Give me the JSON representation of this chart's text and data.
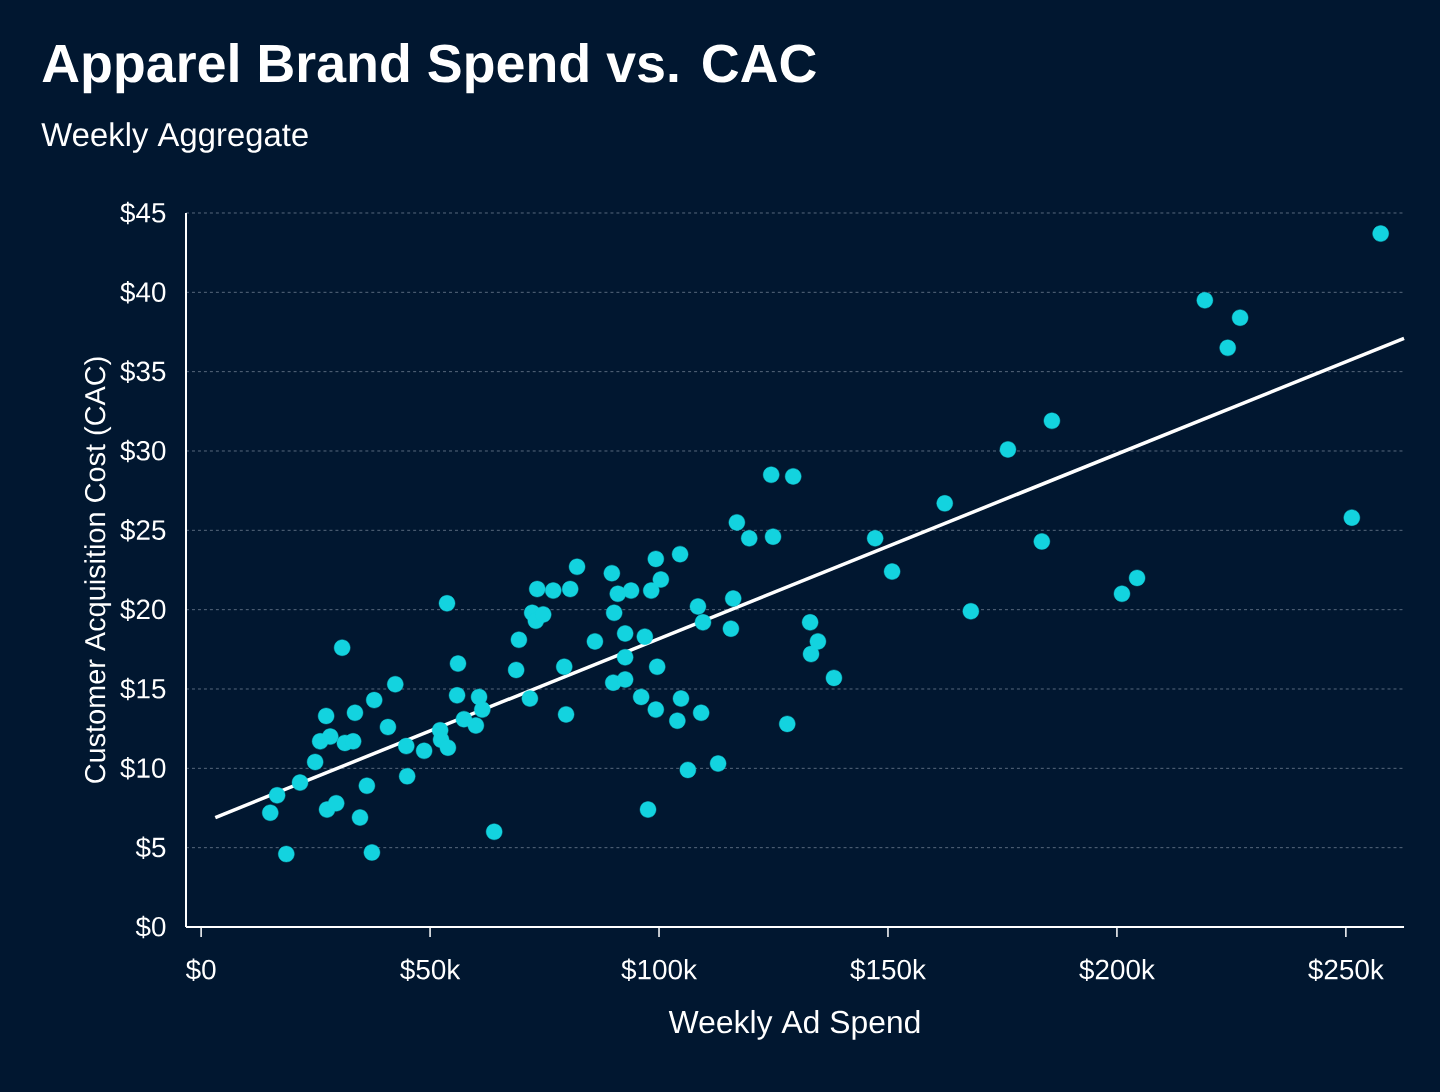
{
  "chart_data": {
    "type": "scatter",
    "title": "Apparel Brand Spend vs. CAC",
    "subtitle": "Weekly Aggregate",
    "xlabel": "Weekly Ad Spend",
    "ylabel": "Customer Acquisition Cost (CAC)",
    "xlim": [
      -3300,
      262700
    ],
    "ylim": [
      0,
      45
    ],
    "xticks": [
      {
        "value": 0,
        "label": "$0"
      },
      {
        "value": 50000,
        "label": "$50k"
      },
      {
        "value": 100000,
        "label": "$100k"
      },
      {
        "value": 150000,
        "label": "$150k"
      },
      {
        "value": 200000,
        "label": "$200k"
      },
      {
        "value": 250000,
        "label": "$250k"
      }
    ],
    "yticks": [
      {
        "value": 0,
        "label": "$0"
      },
      {
        "value": 5,
        "label": "$5"
      },
      {
        "value": 10,
        "label": "$10"
      },
      {
        "value": 15,
        "label": "$15"
      },
      {
        "value": 20,
        "label": "$20"
      },
      {
        "value": 25,
        "label": "$25"
      },
      {
        "value": 30,
        "label": "$30"
      },
      {
        "value": 35,
        "label": "$35"
      },
      {
        "value": 40,
        "label": "$40"
      },
      {
        "value": 45,
        "label": "$45"
      }
    ],
    "grid": "y",
    "series": [
      {
        "color": "#13d3df",
        "marker": "circle",
        "x": [
          15100,
          16600,
          18600,
          21600,
          24900,
          26000,
          27300,
          27500,
          28200,
          29500,
          30800,
          31400,
          33200,
          33600,
          34700,
          36200,
          37300,
          37800,
          40800,
          42400,
          44800,
          45000,
          48700,
          52200,
          52400,
          53900,
          53700,
          56100,
          55900,
          57400,
          60000,
          60700,
          61400,
          64000,
          68800,
          69400,
          71800,
          72300,
          73100,
          73400,
          74700,
          76900,
          79300,
          79700,
          80600,
          82100,
          86000,
          89700,
          90000,
          90200,
          91000,
          92600,
          92600,
          92600,
          93900,
          96100,
          96900,
          97600,
          98300,
          99300,
          99300,
          99600,
          100400,
          104600,
          104000,
          104800,
          106300,
          108500,
          109600,
          109200,
          112900,
          115700,
          116200,
          117000,
          119700,
          124500,
          124900,
          128000,
          129300,
          133000,
          133200,
          134700,
          138200,
          147200,
          150900,
          162400,
          168100,
          176200,
          183600,
          185800,
          201100,
          204400,
          219200,
          224200,
          226900,
          251300,
          257600
        ],
        "values": [
          7.2,
          8.3,
          4.6,
          9.1,
          10.4,
          11.7,
          13.3,
          7.4,
          12.0,
          7.8,
          17.6,
          11.6,
          11.7,
          13.5,
          6.9,
          8.9,
          4.7,
          14.3,
          12.6,
          15.3,
          11.4,
          9.5,
          11.1,
          12.4,
          11.8,
          11.3,
          20.4,
          16.6,
          14.6,
          13.1,
          12.7,
          14.5,
          13.7,
          6.0,
          16.2,
          18.1,
          14.4,
          19.8,
          19.3,
          21.3,
          19.7,
          21.2,
          16.4,
          13.4,
          21.3,
          22.7,
          18.0,
          22.3,
          15.4,
          19.8,
          21.0,
          18.5,
          17.0,
          15.6,
          21.2,
          14.5,
          18.3,
          7.4,
          21.2,
          23.2,
          13.7,
          16.4,
          21.9,
          23.5,
          13.0,
          14.4,
          9.9,
          20.2,
          19.2,
          13.5,
          10.3,
          18.8,
          20.7,
          25.5,
          24.5,
          28.5,
          24.6,
          12.8,
          28.4,
          19.2,
          17.2,
          18.0,
          15.7,
          24.5,
          22.4,
          26.7,
          19.9,
          30.1,
          24.3,
          31.9,
          21.0,
          22.0,
          39.5,
          36.5,
          38.4,
          25.8,
          43.7
        ]
      },
      {
        "type": "line",
        "color": "#ffffff",
        "marker": "none",
        "line_style": "solid",
        "x": [
          3100,
          262700
        ],
        "values": [
          6.9,
          37.1
        ]
      }
    ]
  }
}
